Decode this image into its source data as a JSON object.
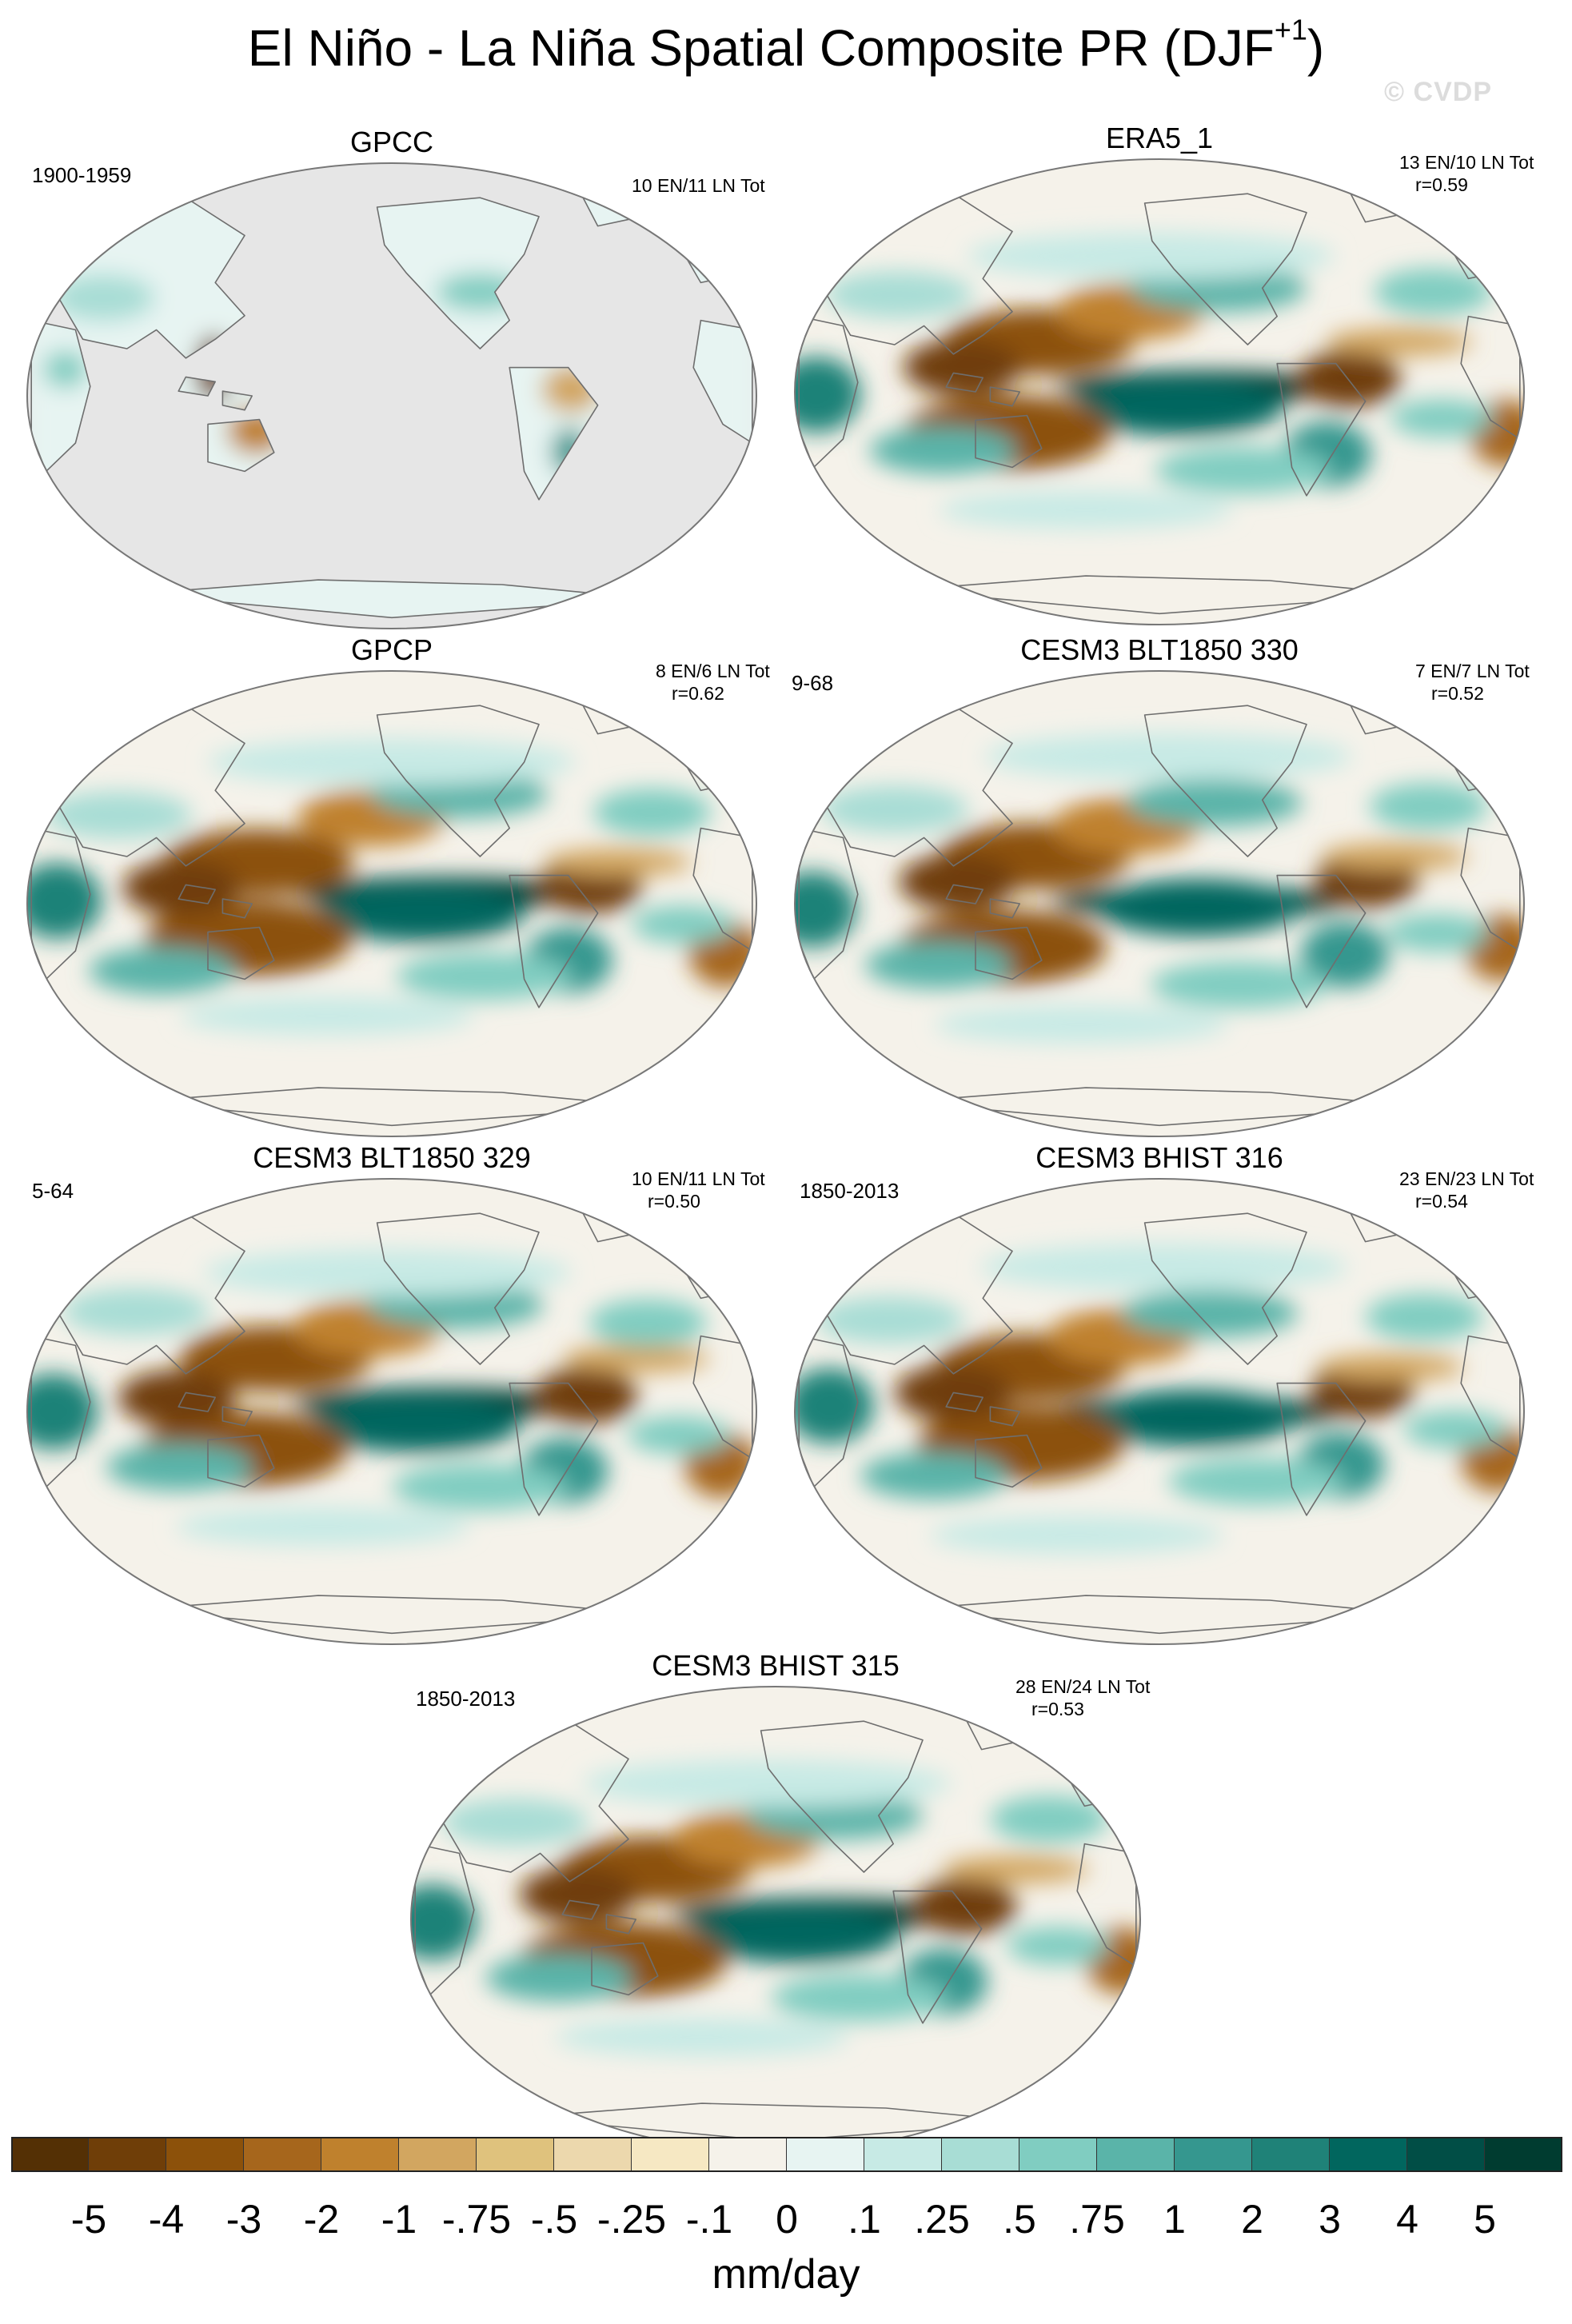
{
  "title": {
    "main": "El Niño - La Niña Spatial Composite PR (DJF",
    "superscript": "+1",
    "close": ")"
  },
  "watermark": "© CVDP",
  "colors": {
    "ocean_gray": "#e6e6e6",
    "coast": "#6e6e6e"
  },
  "panels": [
    {
      "id": "gpcc",
      "title": "GPCC",
      "period": "1900-1959",
      "stats_line1": "10 EN/11 LN Tot",
      "stats_line2": "",
      "land_only": true
    },
    {
      "id": "era5",
      "title": "ERA5_1",
      "period": "",
      "stats_line1": "13 EN/10 LN Tot",
      "stats_line2": "r=0.59",
      "land_only": false
    },
    {
      "id": "gpcp",
      "title": "GPCP",
      "period": "",
      "stats_line1": "8 EN/6 LN Tot",
      "stats_line2": "r=0.62",
      "land_only": false
    },
    {
      "id": "blt330",
      "title": "CESM3 BLT1850 330",
      "period": "9-68",
      "stats_line1": "7 EN/7 LN Tot",
      "stats_line2": "r=0.52",
      "land_only": false
    },
    {
      "id": "blt329",
      "title": "CESM3 BLT1850 329",
      "period": "5-64",
      "stats_line1": "10 EN/11 LN Tot",
      "stats_line2": "r=0.50",
      "land_only": false
    },
    {
      "id": "bh316",
      "title": "CESM3 BHIST 316",
      "period": "1850-2013",
      "stats_line1": "23 EN/23 LN Tot",
      "stats_line2": "r=0.54",
      "land_only": false
    },
    {
      "id": "bh315",
      "title": "CESM3 BHIST 315",
      "period": "1850-2013",
      "stats_line1": "28 EN/24 LN Tot",
      "stats_line2": "r=0.53",
      "land_only": false
    }
  ],
  "colorbar": {
    "colors": [
      "#543005",
      "#6f3e08",
      "#8c510a",
      "#a6661c",
      "#bf812d",
      "#d2a660",
      "#dfc27d",
      "#ecd8ad",
      "#f6e8c3",
      "#f5f2ea",
      "#e7f4f2",
      "#c7eae5",
      "#a8ddd5",
      "#80cdc1",
      "#5ab4a9",
      "#35978f",
      "#1f8278",
      "#01665e",
      "#014e46",
      "#003c30"
    ],
    "labels": [
      "-5",
      "-4",
      "-3",
      "-2",
      "-1",
      "-.75",
      "-.5",
      "-.25",
      "-.1",
      "0",
      ".1",
      ".25",
      ".5",
      ".75",
      "1",
      "2",
      "3",
      "4",
      "5"
    ],
    "units": "mm/day"
  }
}
